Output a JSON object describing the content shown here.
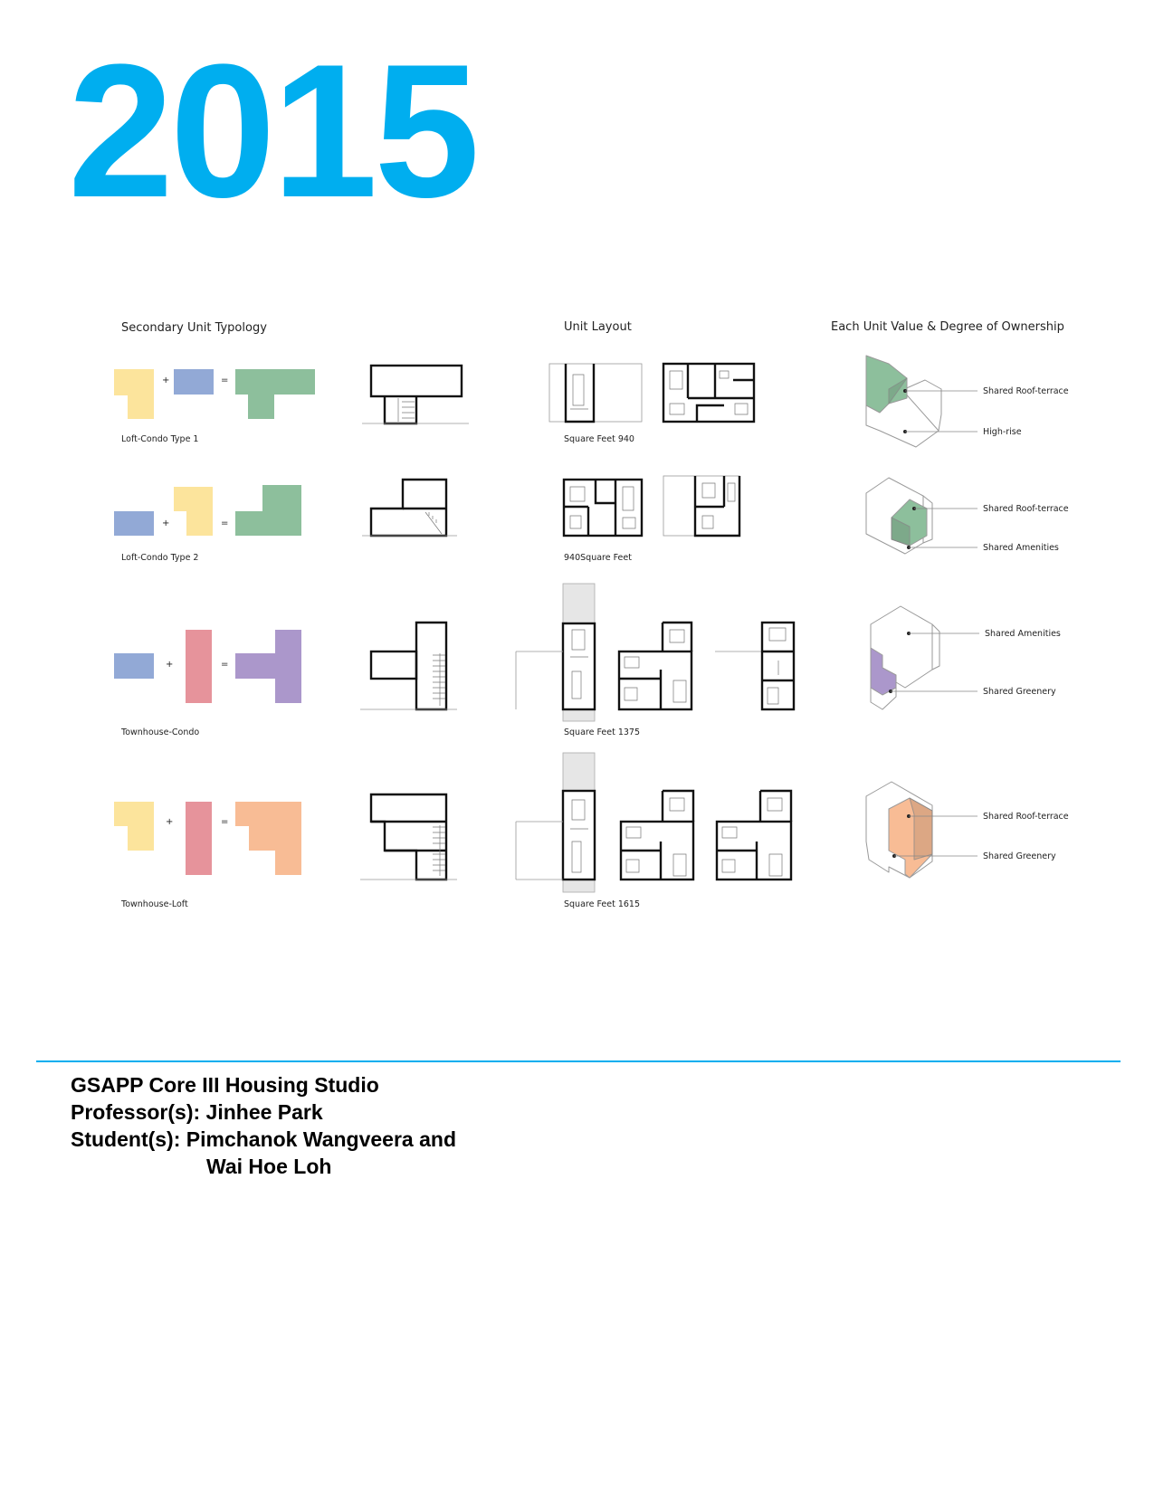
{
  "page": {
    "year": "2015",
    "accent_color": "#00aeef"
  },
  "headers": {
    "typology": "Secondary Unit Typology",
    "layout": "Unit Layout",
    "ownership": "Each Unit Value & Degree of Ownership"
  },
  "rows": [
    {
      "type_label": "Loft-Condo Type 1",
      "area_label": "Square Feet 940",
      "ownership": [
        "Shared Roof-terrace",
        "High-rise"
      ],
      "result_color": "#8dbf9c"
    },
    {
      "type_label": "Loft-Condo Type 2",
      "area_label": "940Square Feet",
      "ownership": [
        "Shared Roof-terrace",
        "Shared Amenities"
      ],
      "result_color": "#8dbf9c"
    },
    {
      "type_label": "Townhouse-Condo",
      "area_label": "Square Feet 1375",
      "ownership": [
        "Shared Amenities",
        "Shared Greenery"
      ],
      "result_color": "#ab97cb"
    },
    {
      "type_label": "Townhouse-Loft",
      "area_label": "Square Feet 1615",
      "ownership": [
        "Shared Roof-terrace",
        "Shared Greenery"
      ],
      "result_color": "#f8bc95"
    }
  ],
  "swatch_colors": {
    "loft": "#fce49c",
    "condo": "#92a9d6",
    "townhouse": "#e6939b"
  },
  "footer": {
    "studio": "GSAPP Core III Housing Studio",
    "professor": "Professor(s): Jinhee Park",
    "students_line1": "Student(s): Pimchanok Wangveera and",
    "students_line2": "Wai Hoe Loh"
  }
}
